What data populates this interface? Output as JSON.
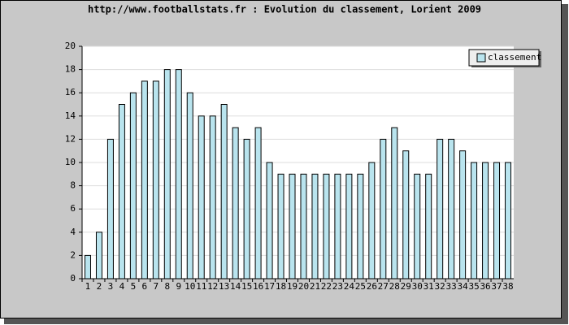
{
  "chart_data": {
    "type": "bar",
    "title": "http://www.footballstats.fr : Evolution du classement, Lorient 2009",
    "categories": [
      "1",
      "2",
      "3",
      "4",
      "5",
      "6",
      "7",
      "8",
      "9",
      "10",
      "11",
      "12",
      "13",
      "14",
      "15",
      "16",
      "17",
      "18",
      "19",
      "20",
      "21",
      "22",
      "23",
      "24",
      "25",
      "26",
      "27",
      "28",
      "29",
      "30",
      "31",
      "32",
      "33",
      "34",
      "35",
      "36",
      "37",
      "38"
    ],
    "series": [
      {
        "name": "classement",
        "color": "#b9e4ee",
        "values": [
          2,
          4,
          12,
          15,
          16,
          17,
          17,
          18,
          18,
          16,
          14,
          14,
          15,
          13,
          12,
          13,
          10,
          9,
          9,
          9,
          9,
          9,
          9,
          9,
          9,
          10,
          12,
          13,
          11,
          9,
          9,
          12,
          12,
          11,
          10,
          10,
          10,
          10
        ]
      }
    ],
    "ylim": [
      0,
      20
    ],
    "yticks": [
      0,
      2,
      4,
      6,
      8,
      10,
      12,
      14,
      16,
      18,
      20
    ],
    "grid": true,
    "legend": "top-right"
  }
}
